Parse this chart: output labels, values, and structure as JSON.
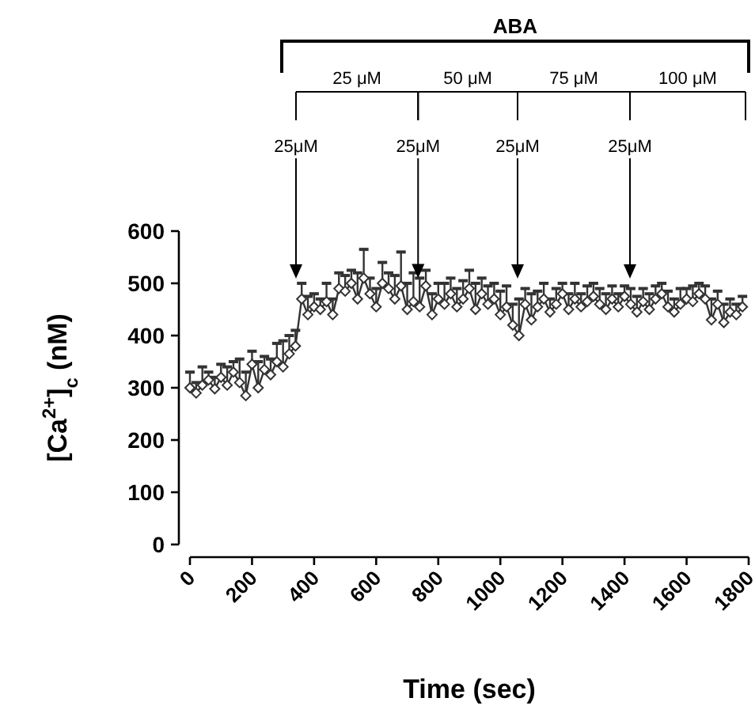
{
  "chart_data": {
    "type": "line",
    "xlabel": "Time (sec)",
    "ylabel": "[Ca$^{2+}$]$_{c}$ (nM)",
    "xlim": [
      0,
      1800
    ],
    "xticks": [
      0,
      200,
      400,
      600,
      800,
      1000,
      1200,
      1400,
      1600,
      1800
    ],
    "ylim": [
      0,
      600
    ],
    "yticks": [
      0,
      100,
      200,
      300,
      400,
      500,
      600
    ],
    "grid": false,
    "marker": "diamond",
    "line_style": "solid",
    "x": [
      0,
      20,
      40,
      60,
      80,
      100,
      120,
      140,
      160,
      180,
      200,
      220,
      240,
      260,
      280,
      300,
      320,
      340,
      360,
      380,
      400,
      420,
      440,
      460,
      480,
      500,
      520,
      540,
      560,
      580,
      600,
      620,
      640,
      660,
      680,
      700,
      720,
      740,
      760,
      780,
      800,
      820,
      840,
      860,
      880,
      900,
      920,
      940,
      960,
      980,
      1000,
      1020,
      1040,
      1060,
      1080,
      1100,
      1120,
      1140,
      1160,
      1180,
      1200,
      1220,
      1240,
      1260,
      1280,
      1300,
      1320,
      1340,
      1360,
      1380,
      1400,
      1420,
      1440,
      1460,
      1480,
      1500,
      1520,
      1540,
      1560,
      1580,
      1600,
      1620,
      1640,
      1660,
      1680,
      1700,
      1720,
      1740,
      1760,
      1780
    ],
    "series": [
      {
        "color": "#333333",
        "values": [
          300,
          290,
          305,
          315,
          298,
          320,
          305,
          330,
          310,
          285,
          345,
          300,
          335,
          325,
          350,
          340,
          365,
          380,
          470,
          440,
          455,
          450,
          465,
          440,
          490,
          485,
          500,
          470,
          510,
          480,
          455,
          500,
          490,
          470,
          495,
          450,
          465,
          455,
          495,
          440,
          470,
          460,
          480,
          455,
          470,
          490,
          450,
          480,
          460,
          470,
          440,
          455,
          420,
          400,
          460,
          430,
          455,
          470,
          445,
          460,
          480,
          450,
          470,
          455,
          465,
          475,
          460,
          450,
          470,
          455,
          475,
          460,
          445,
          465,
          450,
          470,
          480,
          455,
          445,
          460,
          470,
          465,
          480,
          470,
          430,
          460,
          425,
          445,
          440,
          455
        ],
        "errors": [
          [
            300,
            330
          ],
          [
            290,
            310
          ],
          [
            305,
            340
          ],
          [
            315,
            330
          ],
          [
            298,
            320
          ],
          [
            320,
            345
          ],
          [
            305,
            340
          ],
          [
            330,
            350
          ],
          [
            310,
            355
          ],
          [
            285,
            330
          ],
          [
            345,
            370
          ],
          [
            300,
            350
          ],
          [
            335,
            360
          ],
          [
            325,
            355
          ],
          [
            350,
            385
          ],
          [
            340,
            390
          ],
          [
            365,
            400
          ],
          [
            380,
            410
          ],
          [
            470,
            500
          ],
          [
            440,
            475
          ],
          [
            455,
            480
          ],
          [
            450,
            470
          ],
          [
            465,
            500
          ],
          [
            440,
            470
          ],
          [
            490,
            520
          ],
          [
            485,
            515
          ],
          [
            500,
            525
          ],
          [
            470,
            520
          ],
          [
            510,
            565
          ],
          [
            480,
            510
          ],
          [
            455,
            490
          ],
          [
            500,
            540
          ],
          [
            490,
            520
          ],
          [
            470,
            515
          ],
          [
            495,
            560
          ],
          [
            450,
            500
          ],
          [
            465,
            520
          ],
          [
            455,
            510
          ],
          [
            495,
            525
          ],
          [
            440,
            480
          ],
          [
            470,
            500
          ],
          [
            460,
            500
          ],
          [
            480,
            510
          ],
          [
            455,
            490
          ],
          [
            470,
            505
          ],
          [
            490,
            525
          ],
          [
            450,
            500
          ],
          [
            480,
            510
          ],
          [
            460,
            495
          ],
          [
            470,
            500
          ],
          [
            440,
            485
          ],
          [
            455,
            495
          ],
          [
            420,
            460
          ],
          [
            400,
            470
          ],
          [
            460,
            490
          ],
          [
            430,
            480
          ],
          [
            455,
            485
          ],
          [
            470,
            500
          ],
          [
            445,
            470
          ],
          [
            460,
            490
          ],
          [
            480,
            500
          ],
          [
            450,
            480
          ],
          [
            470,
            500
          ],
          [
            455,
            480
          ],
          [
            465,
            495
          ],
          [
            475,
            500
          ],
          [
            460,
            490
          ],
          [
            450,
            480
          ],
          [
            470,
            495
          ],
          [
            455,
            480
          ],
          [
            475,
            495
          ],
          [
            460,
            490
          ],
          [
            445,
            475
          ],
          [
            465,
            490
          ],
          [
            450,
            480
          ],
          [
            470,
            495
          ],
          [
            480,
            500
          ],
          [
            455,
            485
          ],
          [
            445,
            470
          ],
          [
            460,
            490
          ],
          [
            470,
            490
          ],
          [
            465,
            495
          ],
          [
            480,
            500
          ],
          [
            470,
            495
          ],
          [
            430,
            470
          ],
          [
            460,
            485
          ],
          [
            425,
            460
          ],
          [
            445,
            470
          ],
          [
            440,
            460
          ],
          [
            455,
            475
          ]
        ]
      }
    ],
    "annotations": [
      "ABA",
      "25 μM",
      "50 μM",
      "75 μM",
      "100 μM",
      "25μM",
      {
        "text": "25μM",
        "x": 735,
        "y": 510
      },
      "25μM",
      "25μM"
    ]
  }
}
